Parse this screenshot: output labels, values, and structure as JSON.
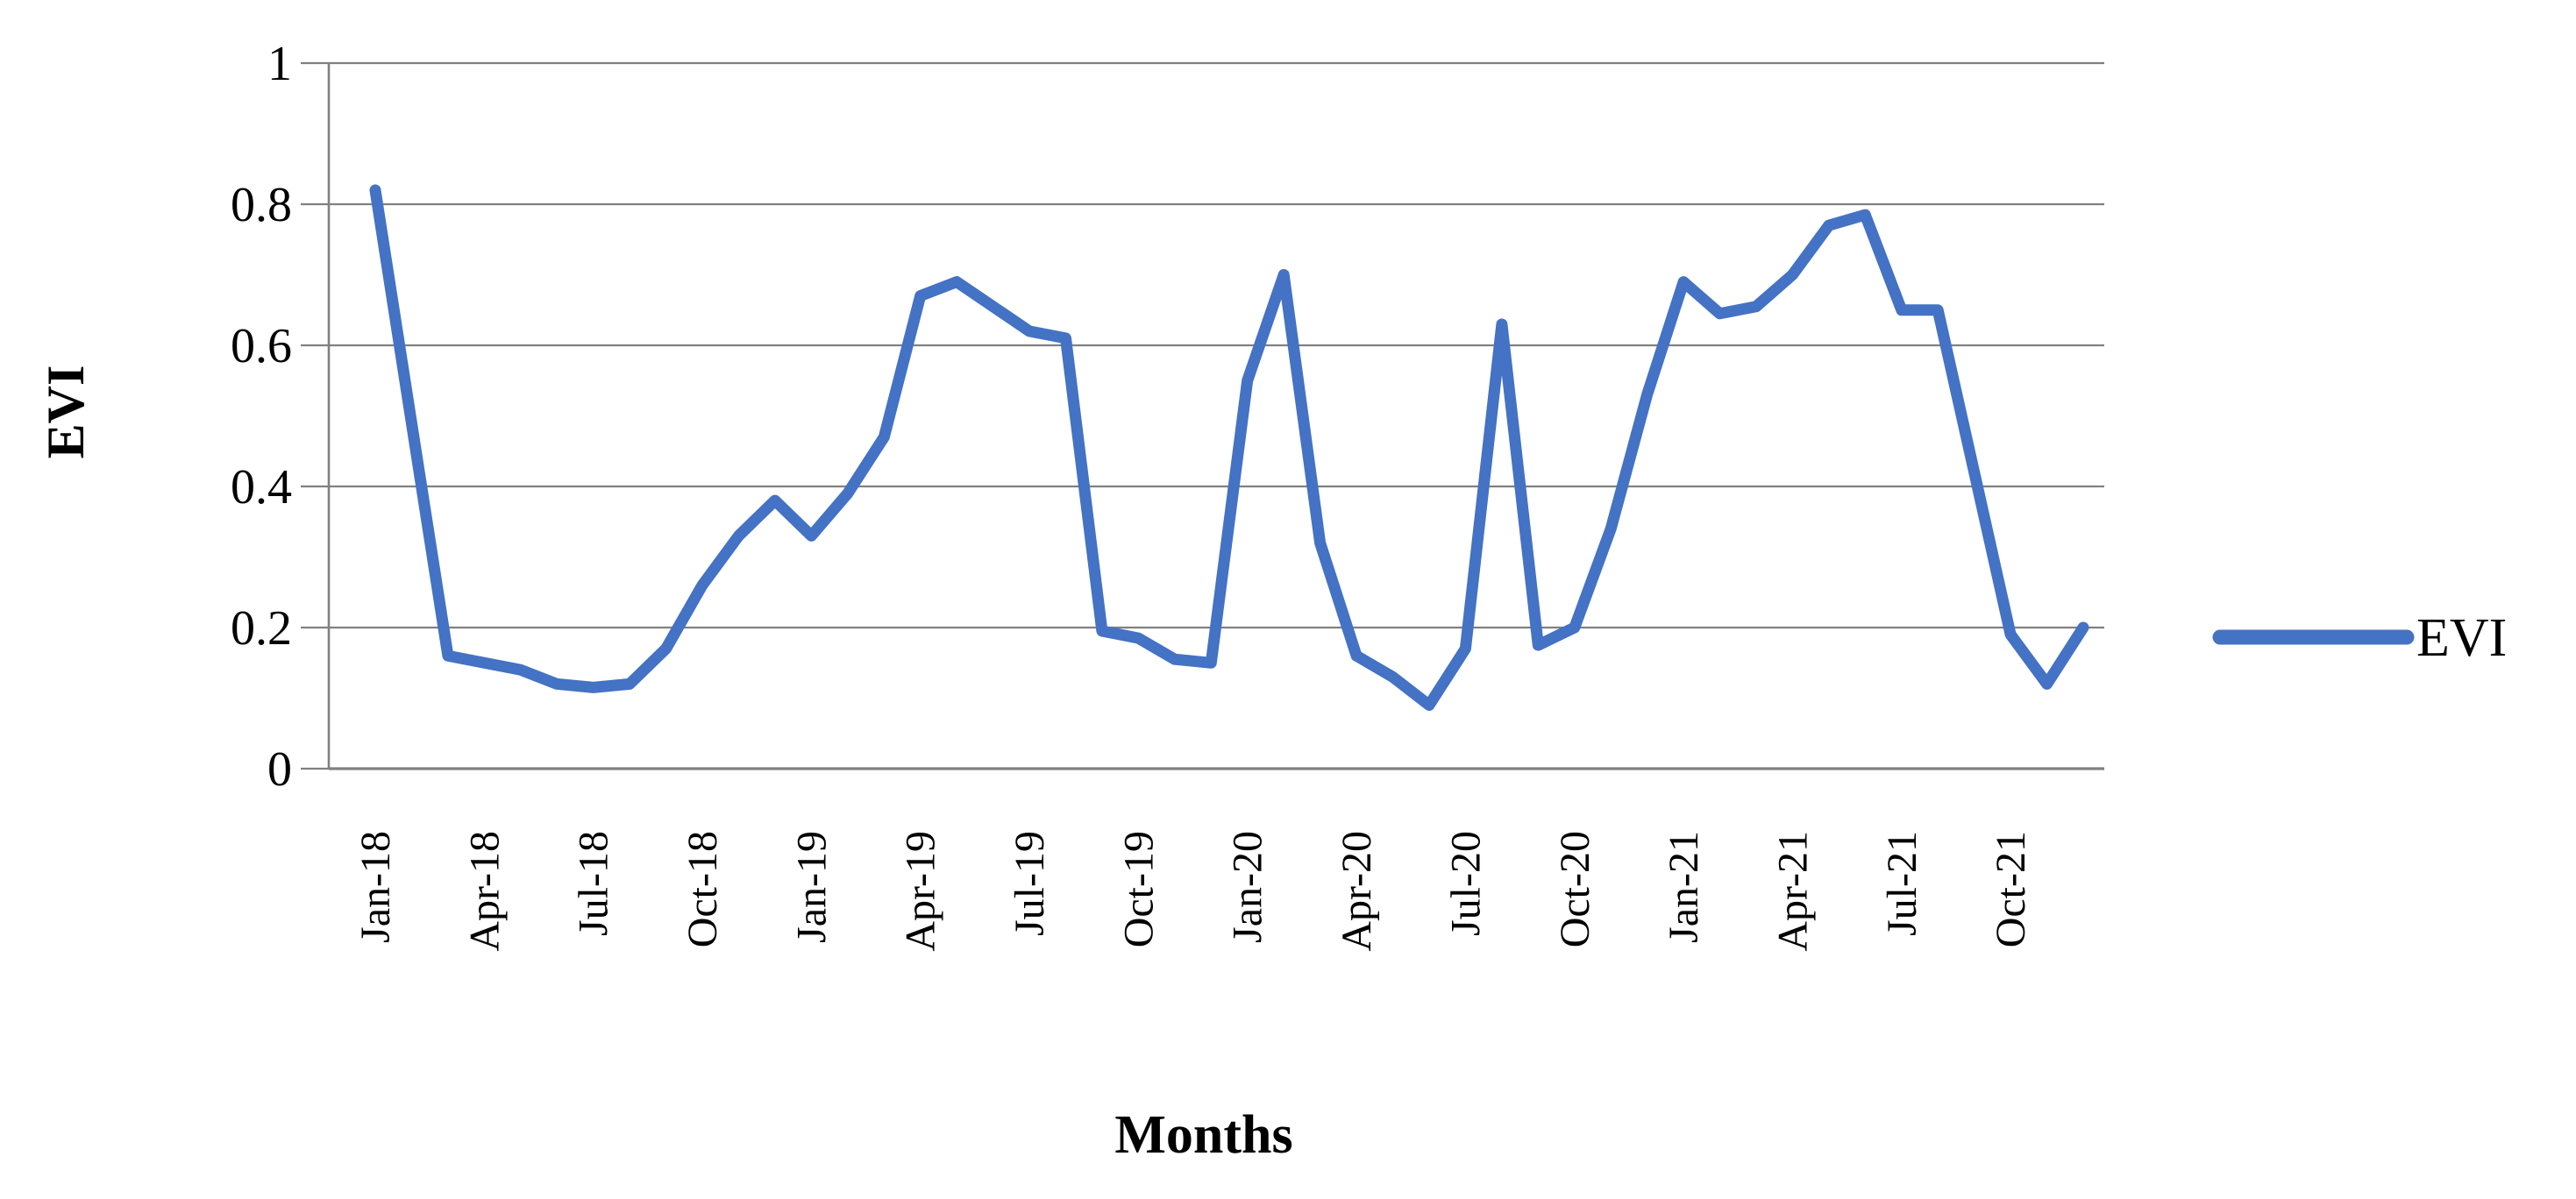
{
  "chart_data": {
    "type": "line",
    "title": "",
    "xlabel": "Months",
    "ylabel": "EVI",
    "ylim": [
      0,
      1
    ],
    "yticks": [
      "0",
      "0.2",
      "0.4",
      "0.6",
      "0.8",
      "1"
    ],
    "ytick_values": [
      0,
      0.2,
      0.4,
      0.6,
      0.8,
      1
    ],
    "grid": "horizontal",
    "legend_position": "right",
    "series": [
      {
        "name": "EVI",
        "color": "#4472C4",
        "x": [
          "Jan-18",
          "Feb-18",
          "Mar-18",
          "Apr-18",
          "May-18",
          "Jun-18",
          "Jul-18",
          "Aug-18",
          "Sep-18",
          "Oct-18",
          "Nov-18",
          "Dec-18",
          "Jan-19",
          "Feb-19",
          "Mar-19",
          "Apr-19",
          "May-19",
          "Jun-19",
          "Jul-19",
          "Aug-19",
          "Sep-19",
          "Oct-19",
          "Nov-19",
          "Dec-19",
          "Jan-20",
          "Feb-20",
          "Mar-20",
          "Apr-20",
          "May-20",
          "Jun-20",
          "Jul-20",
          "Aug-20",
          "Sep-20",
          "Oct-20",
          "Nov-20",
          "Dec-20",
          "Jan-21",
          "Feb-21",
          "Mar-21",
          "Apr-21",
          "May-21",
          "Jun-21",
          "Jul-21",
          "Aug-21",
          "Sep-21",
          "Oct-21",
          "Nov-21",
          "Dec-21"
        ],
        "values": [
          0.82,
          0.49,
          0.16,
          0.15,
          0.14,
          0.12,
          0.115,
          0.12,
          0.17,
          0.26,
          0.33,
          0.38,
          0.33,
          0.39,
          0.47,
          0.67,
          0.69,
          0.655,
          0.62,
          0.61,
          0.195,
          0.185,
          0.155,
          0.15,
          0.55,
          0.7,
          0.32,
          0.16,
          0.13,
          0.09,
          0.17,
          0.63,
          0.175,
          0.2,
          0.34,
          0.53,
          0.69,
          0.645,
          0.655,
          0.7,
          0.77,
          0.785,
          0.65,
          0.65,
          0.42,
          0.19,
          0.12,
          0.2
        ]
      }
    ],
    "x_tick_labels_shown": [
      "Jan-18",
      "Apr-18",
      "Jul-18",
      "Oct-18",
      "Jan-19",
      "Apr-19",
      "Jul-19",
      "Oct-19",
      "Jan-20",
      "Apr-20",
      "Jul-20",
      "Oct-20",
      "Jan-21",
      "Apr-21",
      "Jul-21",
      "Oct-21"
    ],
    "x_tick_step": 3
  },
  "legend": {
    "label": "EVI"
  },
  "colors": {
    "series": "#4472C4",
    "gridline": "#808080",
    "axis": "#808080",
    "text": "#000000",
    "background": "#ffffff"
  }
}
